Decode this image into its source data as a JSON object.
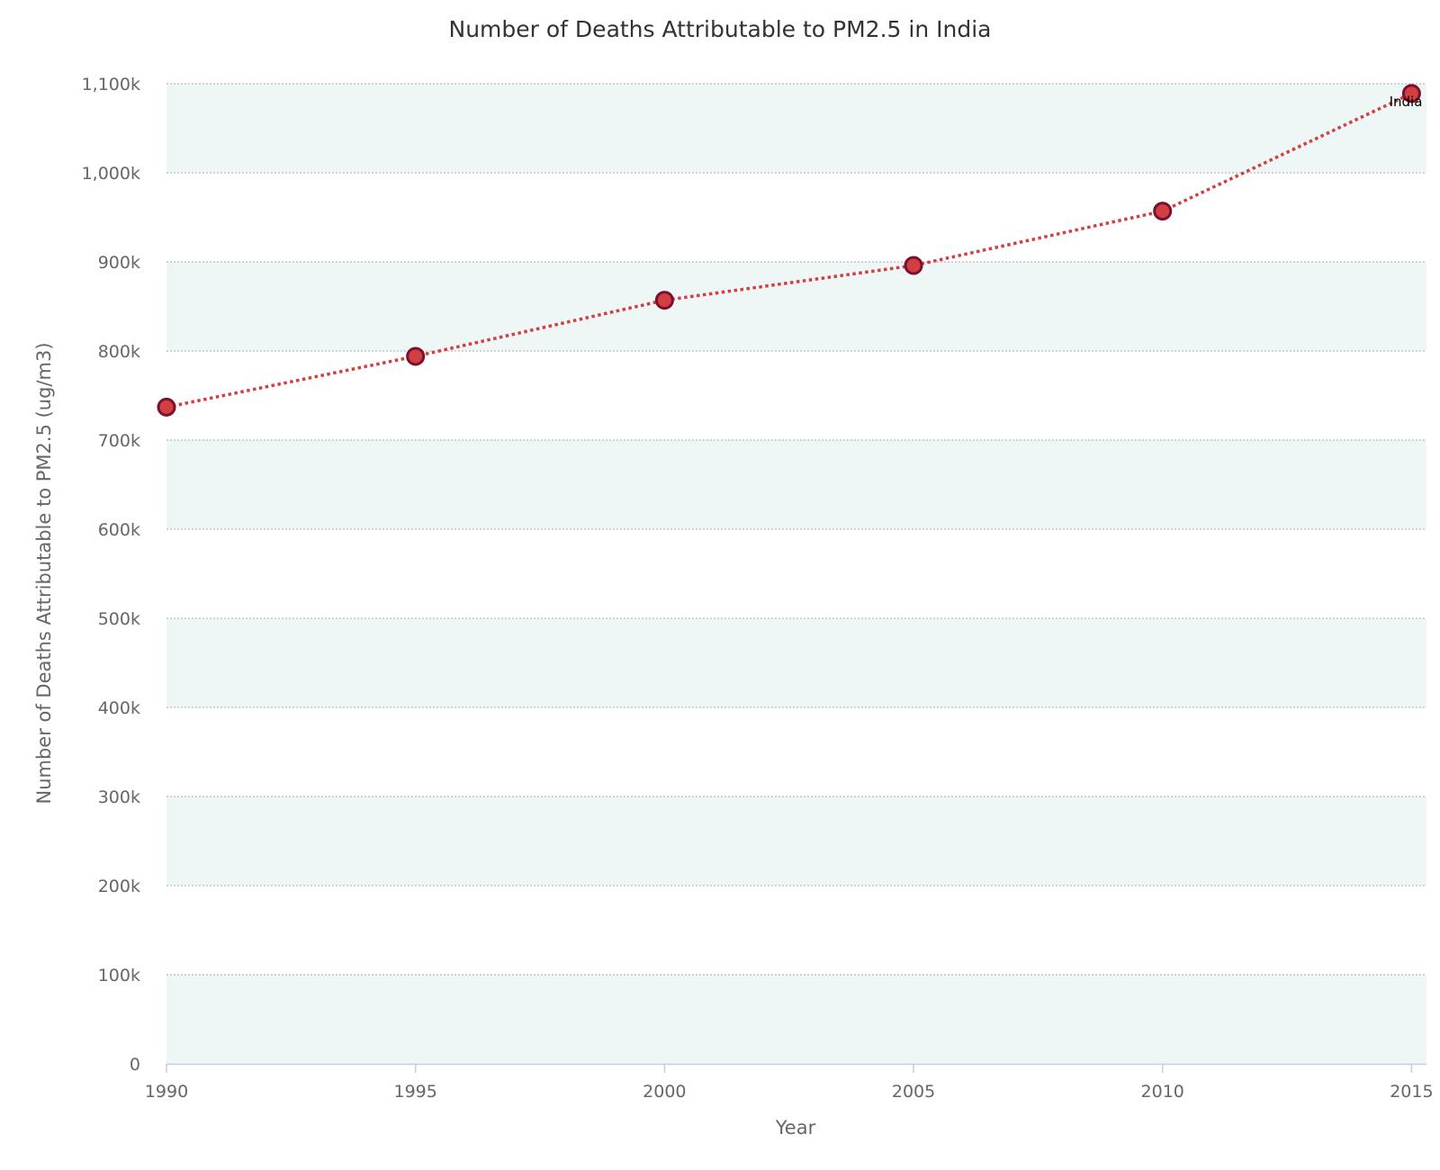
{
  "colors": {
    "band": "#eef6f6",
    "line": "#d23f41",
    "marker_fill": "#d23f41",
    "marker_stroke": "#7a1030",
    "axis_line": "#c0cfe2"
  },
  "chart_data": {
    "type": "line",
    "title": "Number of Deaths Attributable to PM2.5 in India",
    "xlabel": "Year",
    "ylabel": "Number of Deaths Attributable to PM2.5 (ug/m3)",
    "xlim": [
      1990,
      2015.3
    ],
    "ylim": [
      0,
      1100000
    ],
    "x_ticks": [
      1990,
      1995,
      2000,
      2005,
      2010,
      2015
    ],
    "x_tick_labels": [
      "1990",
      "1995",
      "2000",
      "2005",
      "2010",
      "2015"
    ],
    "y_ticks": [
      0,
      100000,
      200000,
      300000,
      400000,
      500000,
      600000,
      700000,
      800000,
      900000,
      1000000,
      1100000
    ],
    "y_tick_labels": [
      "0",
      "100k",
      "200k",
      "300k",
      "400k",
      "500k",
      "600k",
      "700k",
      "800k",
      "900k",
      "1,000k",
      "1,100k"
    ],
    "grid": true,
    "legend": "none",
    "series": [
      {
        "name": "India",
        "line_style": "dotted",
        "x": [
          1990,
          1995,
          2000,
          2005,
          2010,
          2015
        ],
        "y": [
          737000,
          794000,
          857000,
          896000,
          957000,
          1089000
        ]
      }
    ]
  }
}
